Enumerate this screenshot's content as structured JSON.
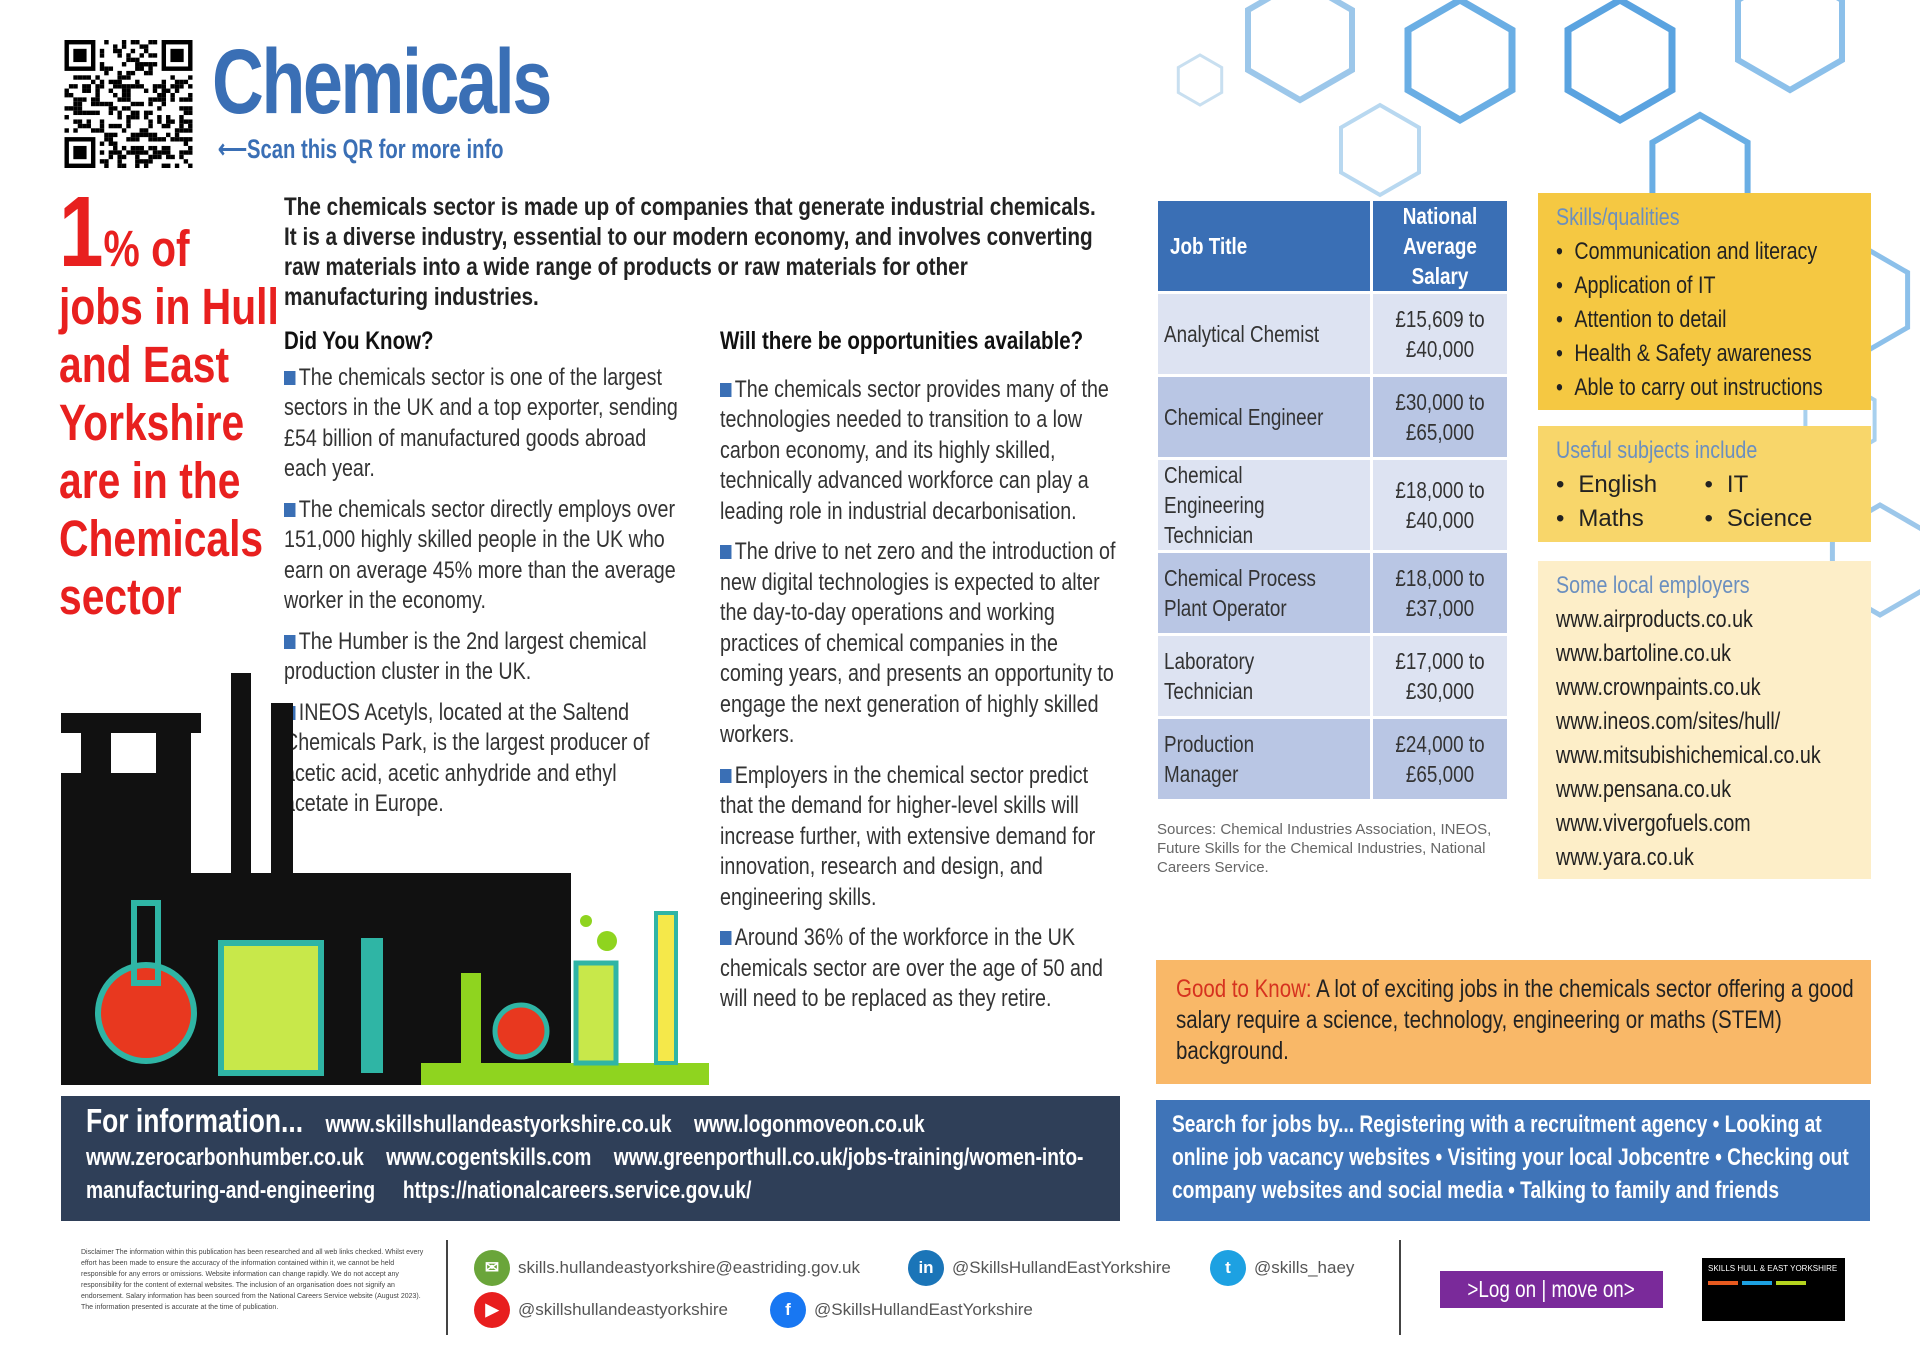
{
  "header": {
    "title": "Chemicals",
    "qr_hint": "⟵Scan this QR for more info"
  },
  "stat": {
    "number": "1",
    "text_lines": [
      "% of",
      "jobs in Hull",
      "and East",
      "Yorkshire",
      "are in the",
      "Chemicals",
      "sector"
    ]
  },
  "intro": "The chemicals sector is made up of companies that generate industrial chemicals. It is a diverse industry, essential to our modern economy, and involves converting raw materials into a wide range of products or raw materials for other manufacturing industries.",
  "did_you_know": {
    "heading": "Did You Know?",
    "items": [
      "The chemicals sector is one of the largest sectors in the UK and a top exporter, sending £54 billion of manufactured goods abroad each year.",
      "The chemicals sector directly employs over 151,000 highly skilled people in the UK who earn on average 45% more than the average worker in the economy.",
      "The Humber is the 2nd largest chemical production cluster in the UK.",
      "INEOS Acetyls, located at the Saltend Chemicals Park, is the largest producer of acetic acid, acetic anhydride and ethyl acetate in Europe."
    ]
  },
  "opportunities": {
    "heading": "Will there be opportunities available?",
    "items": [
      "The chemicals sector provides many of the technologies needed to transition to a low carbon economy, and its highly skilled, technically advanced workforce can play a leading role in industrial decarbonisation.",
      "The drive to net zero and the introduction of new digital technologies is expected to alter the day-to-day operations and working practices of chemical companies in the coming years, and presents an opportunity to engage the next generation of highly skilled workers.",
      "Employers in the chemical sector predict that the demand for higher-level skills will increase further, with extensive demand for innovation, research and design, and engineering skills.",
      "Around 36% of the workforce in the UK chemicals sector are over the age of 50 and will need to be replaced as they retire."
    ]
  },
  "salary_table": {
    "headers": [
      "Job Title",
      "National Average Salary"
    ],
    "rows": [
      {
        "job": "Analytical Chemist",
        "salary": "£15,609 to £40,000"
      },
      {
        "job": "Chemical Engineer",
        "salary": "£30,000 to £65,000"
      },
      {
        "job": "Chemical Engineering Technician",
        "salary": "£18,000 to £40,000"
      },
      {
        "job": "Chemical Process Plant Operator",
        "salary": "£18,000 to £37,000"
      },
      {
        "job": "Laboratory Technician",
        "salary": "£17,000 to £30,000"
      },
      {
        "job": "Production Manager",
        "salary": "£24,000 to £65,000"
      }
    ]
  },
  "sources": "Sources: Chemical Industries Association, INEOS, Future Skills for the Chemical Industries, National Careers Service.",
  "skills": {
    "heading": "Skills/qualities",
    "items": [
      "Communication and literacy",
      "Application of IT",
      "Attention to detail",
      "Health & Safety awareness",
      "Able to carry out instructions"
    ]
  },
  "subjects": {
    "heading": "Useful subjects include",
    "items": [
      "English",
      "IT",
      "Maths",
      "Science"
    ]
  },
  "employers": {
    "heading": "Some local employers",
    "items": [
      "www.airproducts.co.uk",
      "www.bartoline.co.uk",
      "www.crownpaints.co.uk",
      "www.ineos.com/sites/hull/",
      "www.mitsubishichemical.co.uk",
      "www.pensana.co.uk",
      "www.vivergofuels.com",
      "www.yara.co.uk"
    ]
  },
  "good_to_know": {
    "label": "Good to Know:",
    "text": " A lot of exciting jobs in the chemicals sector offering a good salary require a science, technology, engineering or maths (STEM) background."
  },
  "info": {
    "lead": "For information...",
    "links": [
      "www.skillshullandeastyorkshire.co.uk",
      "www.logonmoveon.co.uk",
      "www.zerocarbonhumber.co.uk",
      "www.cogentskills.com",
      "www.greenporthull.co.uk/jobs-training/women-into-manufacturing-and-engineering",
      "https://nationalcareers.service.gov.uk/"
    ]
  },
  "search": "Search for jobs by... Registering with a recruitment agency • Looking at online job vacancy websites • Visiting your local Jobcentre • Checking out company websites and social media • Talking to family and friends",
  "footer": {
    "disclaimer": "Disclaimer The information within this publication has been researched and all web links checked. Whilst every effort has been made to ensure the accuracy of the information contained within it, we cannot be held responsible for any errors or omissions. Website information can change rapidly. We do not accept any responsibility for the content of external websites. The inclusion of an organisation does not signify an endorsement. Salary information has been sourced from the National Careers Service website (August 2023). The information presented is accurate at the time of publication.",
    "email": "skills.hullandeastyorkshire@eastriding.gov.uk",
    "linkedin": "@SkillsHullandEastYorkshire",
    "twitter": "@skills_haey",
    "youtube": "@skillshullandeastyorkshire",
    "facebook": "@SkillsHullandEastYorkshire",
    "logon": ">Log on | move on>",
    "logo": "SKILLS HULL & EAST YORKSHIRE"
  },
  "colors": {
    "accent": "#3a6fb5",
    "red": "#e8201f",
    "navy": "#2f3f58",
    "yellow": "#f5c842",
    "orange": "#f9b868"
  }
}
